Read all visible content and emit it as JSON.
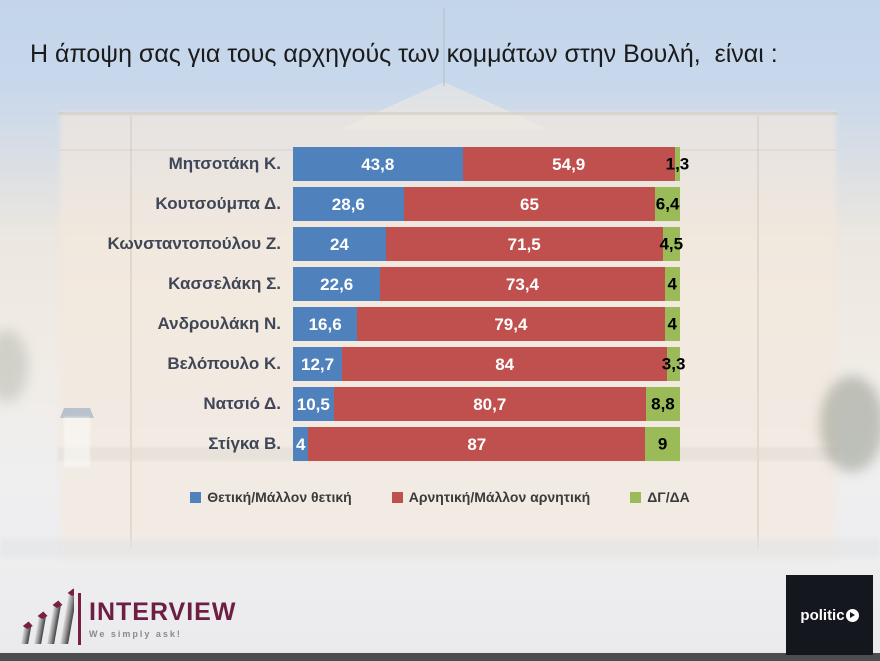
{
  "slide": {
    "title": "Η άποψη σας για τους αρχηγούς των κομμάτων στην Βουλή,  είναι :"
  },
  "chart_data": {
    "type": "bar",
    "orientation": "horizontal",
    "stacked": true,
    "unit": "percent",
    "xlim": [
      0,
      100
    ],
    "grid": false,
    "legend_position": "bottom",
    "decimal_separator": ",",
    "categories": [
      "Μητσοτάκη Κ.",
      "Κουτσούμπα Δ.",
      "Κωνσταντοπούλου Ζ.",
      "Κασσελάκη Σ.",
      "Ανδρουλάκη Ν.",
      "Βελόπουλο Κ.",
      "Νατσιό Δ.",
      "Στίγκα Β."
    ],
    "series": [
      {
        "name": "Θετική/Μάλλον θετική",
        "color": "#4F81BD",
        "label_color": "#FFFFFF",
        "values": [
          43.8,
          28.6,
          24,
          22.6,
          16.6,
          12.7,
          10.5,
          4
        ]
      },
      {
        "name": "Αρνητική/Μάλλον αρνητική",
        "color": "#C0504D",
        "label_color": "#FFFFFF",
        "values": [
          54.9,
          65,
          71.5,
          73.4,
          79.4,
          84,
          80.7,
          87
        ]
      },
      {
        "name": "ΔΓ/ΔΑ",
        "color": "#9BBB59",
        "label_color": "#000000",
        "values": [
          1.3,
          6.4,
          4.5,
          4,
          4,
          3.3,
          8.8,
          9
        ]
      }
    ]
  },
  "footer": {
    "interview": {
      "brand": "INTERVIEW",
      "tagline": "We simply ask!",
      "brand_color": "#6C1F42"
    },
    "politic": {
      "text": "politic",
      "background": "#14171D"
    }
  }
}
